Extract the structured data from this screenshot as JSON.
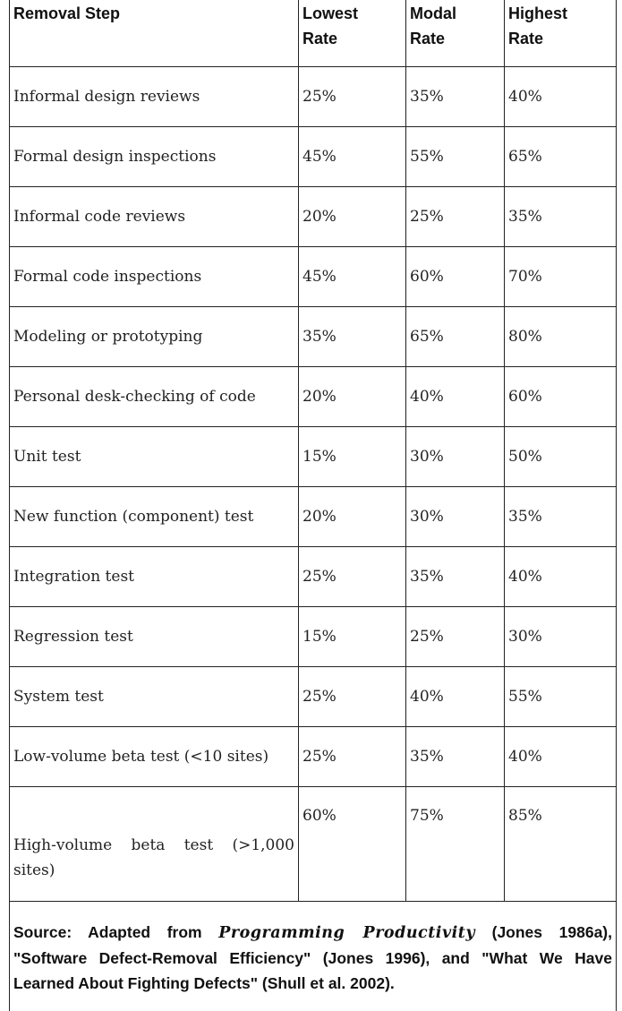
{
  "table": {
    "headers": {
      "step": "Removal Step",
      "lowest_line1": "Lowest",
      "lowest_line2": "Rate",
      "modal_line1": "Modal",
      "modal_line2": "Rate",
      "highest_line1": "Highest",
      "highest_line2": "Rate"
    },
    "rows": [
      {
        "step": "Informal design reviews",
        "lowest": "25%",
        "modal": "35%",
        "highest": "40%"
      },
      {
        "step": "Formal design inspections",
        "lowest": "45%",
        "modal": "55%",
        "highest": "65%"
      },
      {
        "step": "Informal code reviews",
        "lowest": "20%",
        "modal": "25%",
        "highest": "35%"
      },
      {
        "step": "Formal code inspections",
        "lowest": "45%",
        "modal": "60%",
        "highest": "70%"
      },
      {
        "step": "Modeling or prototyping",
        "lowest": "35%",
        "modal": "65%",
        "highest": "80%"
      },
      {
        "step": "Personal desk-checking of code",
        "lowest": "20%",
        "modal": "40%",
        "highest": "60%"
      },
      {
        "step": "Unit test",
        "lowest": "15%",
        "modal": "30%",
        "highest": "50%"
      },
      {
        "step": "New function (component) test",
        "lowest": "20%",
        "modal": "30%",
        "highest": "35%"
      },
      {
        "step": "Integration test",
        "lowest": "25%",
        "modal": "35%",
        "highest": "40%"
      },
      {
        "step": "Regression test",
        "lowest": "15%",
        "modal": "25%",
        "highest": "30%"
      },
      {
        "step": "System test",
        "lowest": "25%",
        "modal": "40%",
        "highest": "55%"
      },
      {
        "step": "Low-volume beta test (<10 sites)",
        "lowest": "25%",
        "modal": "35%",
        "highest": "40%"
      },
      {
        "step": "High-volume beta test (>1,000 sites)",
        "lowest": "60%",
        "modal": "75%",
        "highest": "85%"
      }
    ]
  },
  "source": {
    "prefix": "Source: Adapted from ",
    "title": "Programming Productivity",
    "suffix": " (Jones 1986a), \"Software Defect-Removal Efficiency\" (Jones 1996), and \"What We Have Learned About Fighting Defects\" (Shull et al. 2002)."
  }
}
